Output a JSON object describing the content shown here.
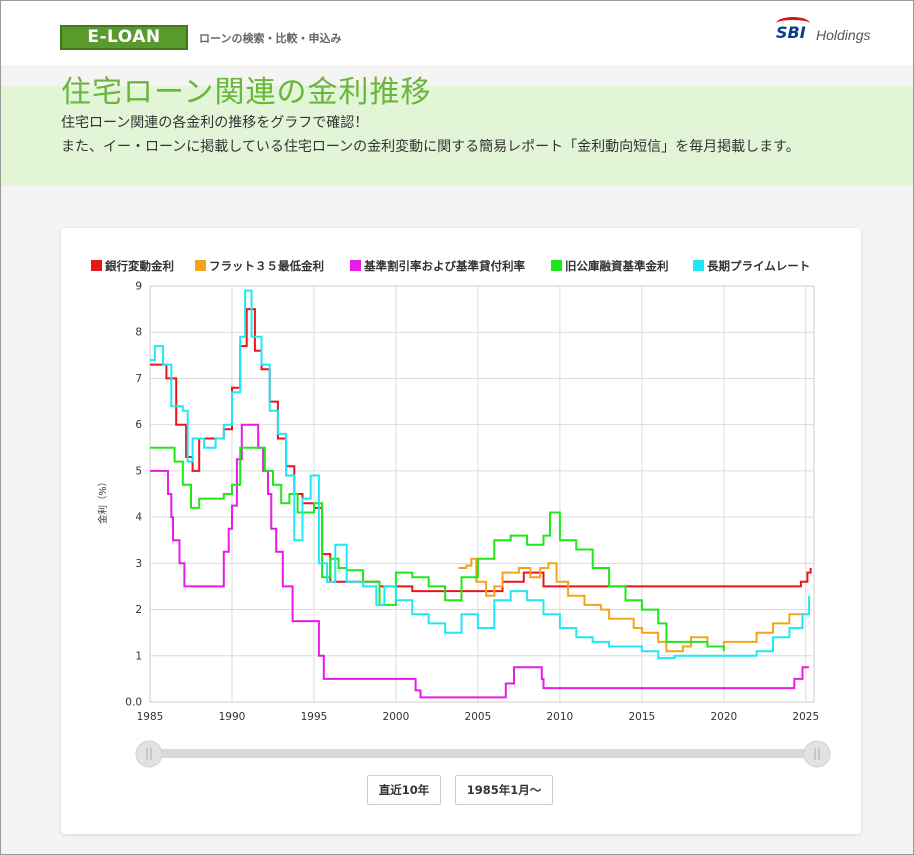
{
  "header": {
    "logo_text": "E-LOAN",
    "tagline": "ローンの検索・比較・申込み",
    "partner_text": "Holdings",
    "partner_mark": "SBI"
  },
  "hero": {
    "title": "住宅ローン関連の金利推移",
    "desc_line1": "住宅ローン関連の各金利の推移をグラフで確認！",
    "desc_line2": "また、イー・ローンに掲載している住宅ローンの金利変動に関する簡易レポート「金利動向短信」を毎月掲載します。"
  },
  "buttons": {
    "recent_10y": "直近10年",
    "from_1985": "1985年1月〜"
  },
  "chart_data": {
    "type": "line",
    "ylabel": "金利（%）",
    "xlim": [
      1985,
      2025.5
    ],
    "ylim": [
      0,
      9
    ],
    "x_ticks": [
      "1985",
      "1990",
      "1995",
      "2000",
      "2005",
      "2010",
      "2015",
      "2020",
      "2025"
    ],
    "y_ticks": [
      "0.0",
      "1",
      "2",
      "3",
      "4",
      "5",
      "6",
      "7",
      "8",
      "9"
    ],
    "grid": true,
    "legend_position": "top",
    "series": [
      {
        "name": "銀行変動金利",
        "color": "#e8151b",
        "points": [
          [
            1985,
            7.3
          ],
          [
            1986,
            7.0
          ],
          [
            1986.6,
            6.0
          ],
          [
            1987.2,
            5.3
          ],
          [
            1987.6,
            5.0
          ],
          [
            1988,
            5.7
          ],
          [
            1989,
            5.7
          ],
          [
            1989.5,
            5.9
          ],
          [
            1990,
            6.8
          ],
          [
            1990.5,
            7.7
          ],
          [
            1990.9,
            8.5
          ],
          [
            1991.4,
            7.6
          ],
          [
            1991.8,
            7.2
          ],
          [
            1992.3,
            6.5
          ],
          [
            1992.8,
            5.7
          ],
          [
            1993.3,
            5.1
          ],
          [
            1993.8,
            4.5
          ],
          [
            1994.3,
            4.3
          ],
          [
            1995,
            4.2
          ],
          [
            1995.5,
            3.2
          ],
          [
            1996,
            2.6
          ],
          [
            1998,
            2.6
          ],
          [
            1999,
            2.5
          ],
          [
            2001,
            2.4
          ],
          [
            2006,
            2.4
          ],
          [
            2006.5,
            2.6
          ],
          [
            2007,
            2.6
          ],
          [
            2007.8,
            2.8
          ],
          [
            2009,
            2.5
          ],
          [
            2024,
            2.5
          ],
          [
            2024.7,
            2.6
          ],
          [
            2025.1,
            2.8
          ],
          [
            2025.3,
            2.9
          ]
        ]
      },
      {
        "name": "フラット３５最低金利",
        "color": "#f5a31a",
        "points": [
          [
            2003.8,
            2.9
          ],
          [
            2004.3,
            2.95
          ],
          [
            2004.6,
            3.1
          ],
          [
            2004.9,
            2.6
          ],
          [
            2005.5,
            2.3
          ],
          [
            2006,
            2.5
          ],
          [
            2006.5,
            2.8
          ],
          [
            2007.5,
            2.9
          ],
          [
            2008.2,
            2.7
          ],
          [
            2008.8,
            2.9
          ],
          [
            2009.3,
            3.0
          ],
          [
            2009.8,
            2.6
          ],
          [
            2010.5,
            2.3
          ],
          [
            2011,
            2.3
          ],
          [
            2011.5,
            2.1
          ],
          [
            2012.5,
            2.0
          ],
          [
            2013,
            1.8
          ],
          [
            2013.5,
            1.8
          ],
          [
            2014.5,
            1.6
          ],
          [
            2015,
            1.5
          ],
          [
            2016,
            1.3
          ],
          [
            2016.5,
            1.1
          ],
          [
            2017,
            1.1
          ],
          [
            2017.5,
            1.2
          ],
          [
            2018,
            1.4
          ],
          [
            2019,
            1.2
          ],
          [
            2020,
            1.3
          ],
          [
            2021,
            1.3
          ],
          [
            2022,
            1.5
          ],
          [
            2023,
            1.7
          ],
          [
            2024,
            1.9
          ],
          [
            2025,
            1.9
          ]
        ]
      },
      {
        "name": "基準割引率および基準貸付利率",
        "color": "#e81be8",
        "points": [
          [
            1985,
            5.0
          ],
          [
            1986,
            5.0
          ],
          [
            1986.1,
            4.5
          ],
          [
            1986.3,
            4.0
          ],
          [
            1986.4,
            3.5
          ],
          [
            1986.8,
            3.0
          ],
          [
            1987.1,
            2.5
          ],
          [
            1989.4,
            2.5
          ],
          [
            1989.5,
            3.25
          ],
          [
            1989.8,
            3.75
          ],
          [
            1990,
            4.25
          ],
          [
            1990.3,
            5.25
          ],
          [
            1990.6,
            6.0
          ],
          [
            1991.5,
            6.0
          ],
          [
            1991.6,
            5.5
          ],
          [
            1991.9,
            5.0
          ],
          [
            1992.2,
            4.5
          ],
          [
            1992.4,
            3.75
          ],
          [
            1992.7,
            3.25
          ],
          [
            1993.1,
            2.5
          ],
          [
            1993.7,
            1.75
          ],
          [
            1995.2,
            1.75
          ],
          [
            1995.3,
            1.0
          ],
          [
            1995.6,
            0.5
          ],
          [
            2001,
            0.5
          ],
          [
            2001.2,
            0.25
          ],
          [
            2001.5,
            0.1
          ],
          [
            2006.6,
            0.1
          ],
          [
            2006.7,
            0.4
          ],
          [
            2007.2,
            0.75
          ],
          [
            2008.8,
            0.75
          ],
          [
            2008.9,
            0.5
          ],
          [
            2009,
            0.3
          ],
          [
            2024,
            0.3
          ],
          [
            2024.3,
            0.5
          ],
          [
            2024.8,
            0.75
          ],
          [
            2025.2,
            0.75
          ]
        ]
      },
      {
        "name": "旧公庫融資基準金利",
        "color": "#1ee81b",
        "points": [
          [
            1985,
            5.5
          ],
          [
            1986,
            5.5
          ],
          [
            1986.5,
            5.2
          ],
          [
            1987,
            4.7
          ],
          [
            1987.5,
            4.2
          ],
          [
            1988,
            4.4
          ],
          [
            1989,
            4.4
          ],
          [
            1989.5,
            4.5
          ],
          [
            1990,
            4.7
          ],
          [
            1990.5,
            5.5
          ],
          [
            1991.5,
            5.5
          ],
          [
            1992,
            5.0
          ],
          [
            1992.5,
            4.7
          ],
          [
            1993,
            4.3
          ],
          [
            1993.5,
            4.5
          ],
          [
            1994,
            4.1
          ],
          [
            1995,
            4.3
          ],
          [
            1995.5,
            2.7
          ],
          [
            1996,
            3.1
          ],
          [
            1996.5,
            2.9
          ],
          [
            1997,
            2.85
          ],
          [
            1998,
            2.6
          ],
          [
            1999,
            2.1
          ],
          [
            2000,
            2.8
          ],
          [
            2001,
            2.7
          ],
          [
            2002,
            2.5
          ],
          [
            2003,
            2.2
          ],
          [
            2004,
            2.7
          ],
          [
            2005,
            3.1
          ],
          [
            2006,
            3.5
          ],
          [
            2007,
            3.6
          ],
          [
            2008,
            3.4
          ],
          [
            2009,
            3.6
          ],
          [
            2009.4,
            4.1
          ],
          [
            2010,
            3.5
          ],
          [
            2011,
            3.3
          ],
          [
            2012,
            2.9
          ],
          [
            2013,
            2.5
          ],
          [
            2013.5,
            2.5
          ],
          [
            2014,
            2.2
          ],
          [
            2015,
            2.0
          ],
          [
            2016,
            1.7
          ],
          [
            2016.5,
            1.3
          ],
          [
            2017,
            1.3
          ],
          [
            2018,
            1.3
          ],
          [
            2019,
            1.2
          ],
          [
            2020,
            1.1
          ]
        ]
      },
      {
        "name": "長期プライムレート",
        "color": "#1ee8f5",
        "points": [
          [
            1985,
            7.4
          ],
          [
            1985.3,
            7.7
          ],
          [
            1985.8,
            7.3
          ],
          [
            1986.3,
            6.4
          ],
          [
            1987,
            6.3
          ],
          [
            1987.3,
            5.2
          ],
          [
            1987.6,
            5.7
          ],
          [
            1988.3,
            5.5
          ],
          [
            1989,
            5.7
          ],
          [
            1989.5,
            6.0
          ],
          [
            1990,
            6.7
          ],
          [
            1990.5,
            7.9
          ],
          [
            1990.8,
            8.9
          ],
          [
            1991.2,
            7.9
          ],
          [
            1991.8,
            7.3
          ],
          [
            1992.3,
            6.3
          ],
          [
            1992.8,
            5.8
          ],
          [
            1993.3,
            4.9
          ],
          [
            1993.8,
            3.5
          ],
          [
            1994.3,
            4.4
          ],
          [
            1994.8,
            4.9
          ],
          [
            1995.3,
            3.0
          ],
          [
            1995.8,
            2.6
          ],
          [
            1996.3,
            3.4
          ],
          [
            1997,
            2.6
          ],
          [
            1998,
            2.5
          ],
          [
            1998.8,
            2.1
          ],
          [
            1999.3,
            2.5
          ],
          [
            2000,
            2.2
          ],
          [
            2001,
            1.9
          ],
          [
            2002,
            1.7
          ],
          [
            2003,
            1.5
          ],
          [
            2004,
            1.9
          ],
          [
            2005,
            1.6
          ],
          [
            2006,
            2.2
          ],
          [
            2007,
            2.4
          ],
          [
            2008,
            2.2
          ],
          [
            2009,
            1.9
          ],
          [
            2010,
            1.6
          ],
          [
            2011,
            1.4
          ],
          [
            2012,
            1.3
          ],
          [
            2013,
            1.2
          ],
          [
            2014,
            1.2
          ],
          [
            2015,
            1.1
          ],
          [
            2016,
            0.95
          ],
          [
            2017,
            1.0
          ],
          [
            2018,
            1.0
          ],
          [
            2019,
            1.0
          ],
          [
            2020,
            1.0
          ],
          [
            2021,
            1.0
          ],
          [
            2022,
            1.1
          ],
          [
            2023,
            1.4
          ],
          [
            2024,
            1.6
          ],
          [
            2024.8,
            1.9
          ],
          [
            2025.2,
            2.3
          ]
        ]
      }
    ]
  }
}
